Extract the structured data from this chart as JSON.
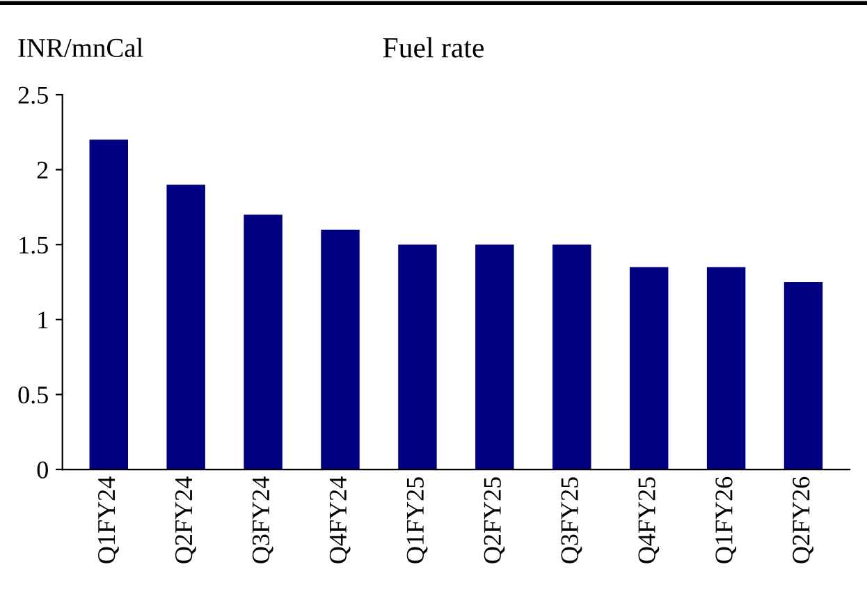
{
  "chart_data": {
    "type": "bar",
    "title": "Fuel rate",
    "ylabel": "INR/mnCal",
    "categories": [
      "Q1FY24",
      "Q2FY24",
      "Q3FY24",
      "Q4FY24",
      "Q1FY25",
      "Q2FY25",
      "Q3FY25",
      "Q4FY25",
      "Q1FY26",
      "Q2FY26"
    ],
    "values": [
      2.2,
      1.9,
      1.7,
      1.6,
      1.5,
      1.5,
      1.5,
      1.35,
      1.35,
      1.25
    ],
    "color": "#000080",
    "ylim": [
      0,
      2.5
    ],
    "yticks": [
      {
        "value": 0,
        "label": "0"
      },
      0.5,
      {
        "value": 1,
        "label": "1"
      },
      1.5,
      {
        "value": 2,
        "label": "2"
      },
      2.5
    ],
    "grid": false,
    "legend": false
  }
}
